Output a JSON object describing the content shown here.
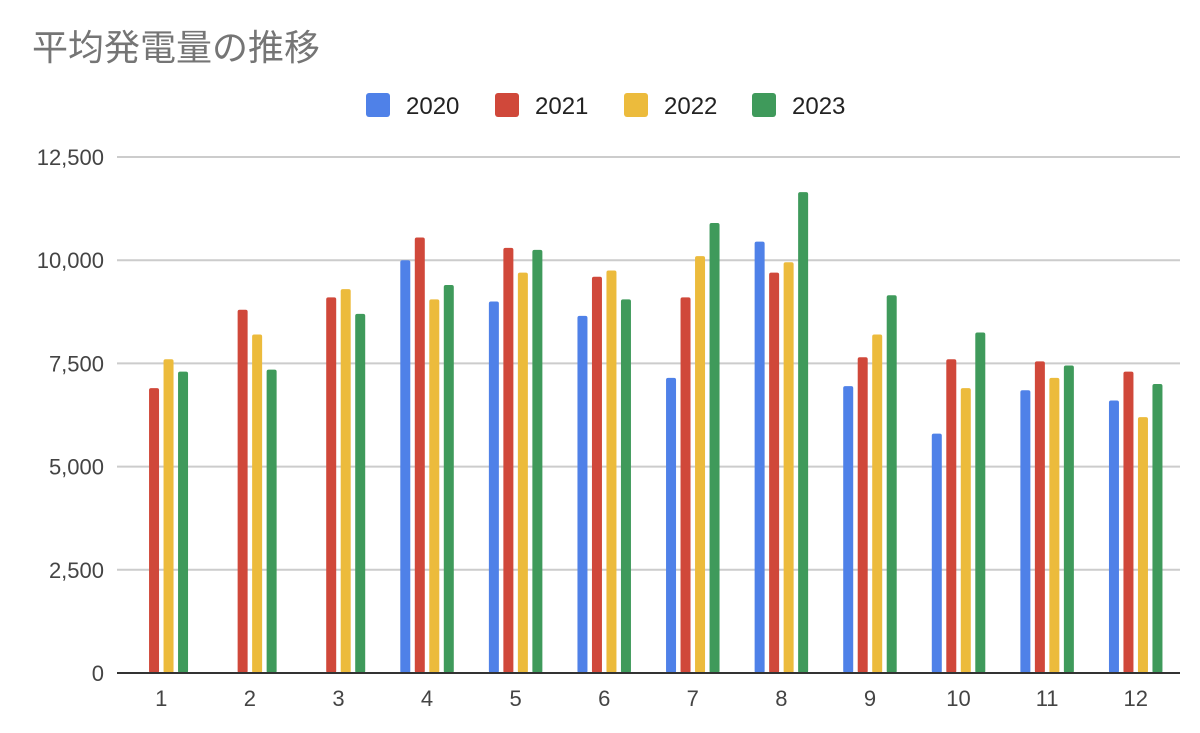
{
  "chart_data": {
    "type": "bar",
    "title": "平均発電量の推移",
    "xlabel": "",
    "ylabel": "",
    "categories": [
      "1",
      "2",
      "3",
      "4",
      "5",
      "6",
      "7",
      "8",
      "9",
      "10",
      "11",
      "12"
    ],
    "ylim": [
      0,
      12500
    ],
    "yticks": [
      0,
      2500,
      5000,
      7500,
      10000,
      12500
    ],
    "ytick_labels": [
      "0",
      "2,500",
      "5,000",
      "7,500",
      "10,000",
      "12,500"
    ],
    "grid": true,
    "legend_position": "top",
    "series": [
      {
        "name": "2020",
        "color": "#4f81e8",
        "values": [
          null,
          null,
          null,
          10000,
          9000,
          8650,
          7150,
          10450,
          6950,
          5800,
          6850,
          6600
        ]
      },
      {
        "name": "2021",
        "color": "#d0483a",
        "values": [
          6900,
          8800,
          9100,
          10550,
          10300,
          9600,
          9100,
          9700,
          7650,
          7600,
          7550,
          7300
        ]
      },
      {
        "name": "2022",
        "color": "#ecbb3c",
        "values": [
          7600,
          8200,
          9300,
          9050,
          9700,
          9750,
          10100,
          9950,
          8200,
          6900,
          7150,
          6200
        ]
      },
      {
        "name": "2023",
        "color": "#3f9a5b",
        "values": [
          7300,
          7350,
          8700,
          9400,
          10250,
          9050,
          10900,
          11650,
          9150,
          8250,
          7450,
          7000
        ]
      }
    ]
  }
}
